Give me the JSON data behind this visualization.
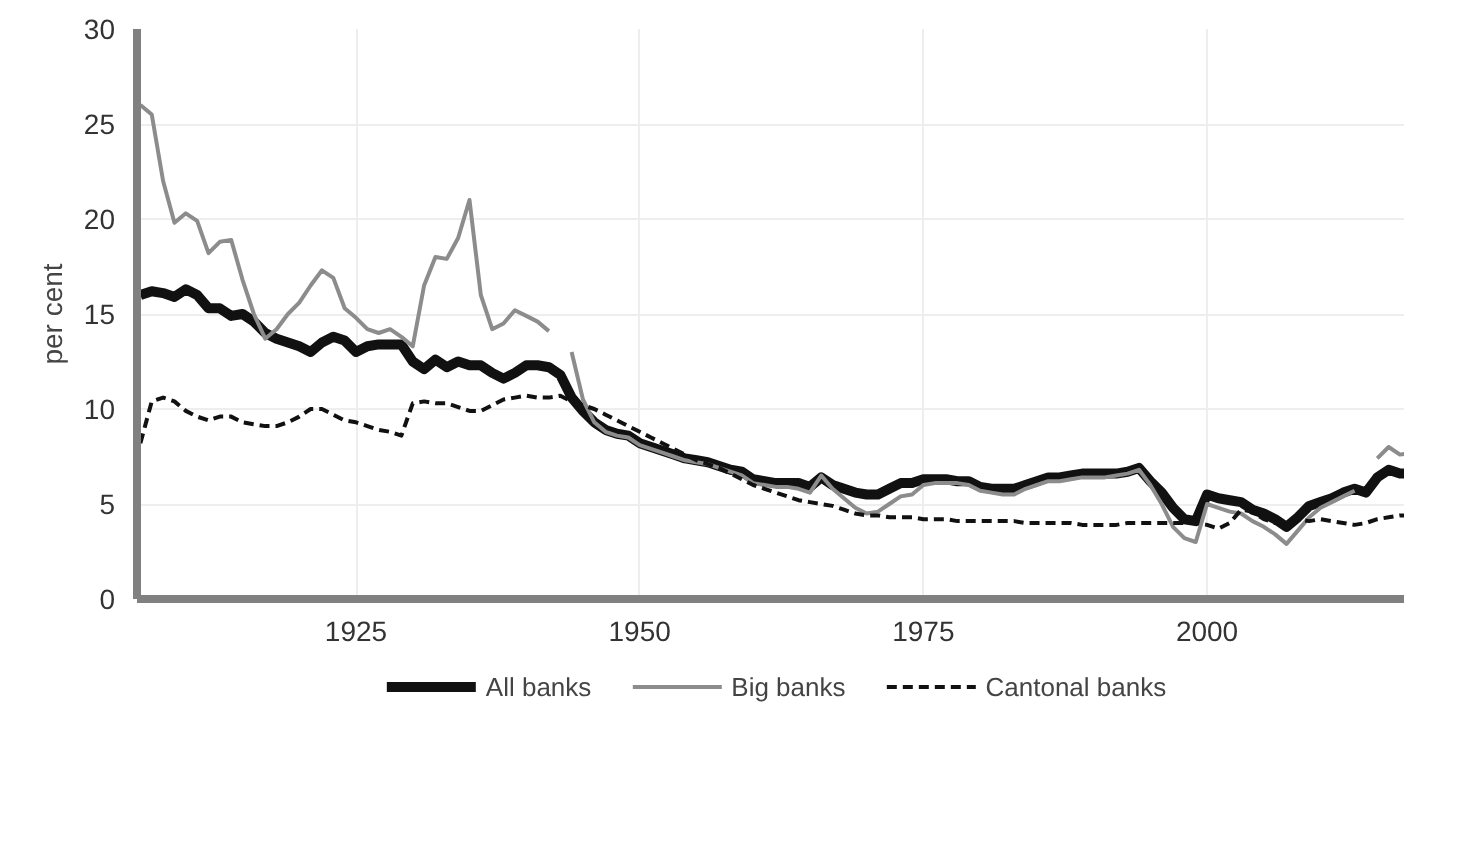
{
  "chart_data": {
    "type": "line",
    "ylabel": "per cent",
    "xlim": [
      1905.7,
      2018.5
    ],
    "xticks": [
      1925,
      1950,
      1975,
      2000
    ],
    "ylim": [
      0,
      30
    ],
    "yticks": [
      0,
      5,
      10,
      15,
      20,
      25,
      30
    ],
    "grid": true,
    "legend": "bottom",
    "marker": "none",
    "x": [
      1906,
      1907,
      1908,
      1909,
      1910,
      1911,
      1912,
      1913,
      1914,
      1915,
      1916,
      1917,
      1918,
      1919,
      1920,
      1921,
      1922,
      1923,
      1924,
      1925,
      1926,
      1927,
      1928,
      1929,
      1930,
      1931,
      1932,
      1933,
      1934,
      1935,
      1936,
      1937,
      1938,
      1939,
      1940,
      1941,
      1942,
      1943,
      1944,
      1945,
      1946,
      1947,
      1948,
      1949,
      1950,
      1951,
      1952,
      1953,
      1954,
      1955,
      1956,
      1957,
      1958,
      1959,
      1960,
      1961,
      1962,
      1963,
      1964,
      1965,
      1966,
      1967,
      1968,
      1969,
      1970,
      1971,
      1972,
      1973,
      1974,
      1975,
      1976,
      1977,
      1978,
      1979,
      1980,
      1981,
      1982,
      1983,
      1984,
      1985,
      1986,
      1987,
      1988,
      1989,
      1990,
      1991,
      1992,
      1993,
      1994,
      1995,
      1996,
      1997,
      1998,
      1999,
      2000,
      2001,
      2002,
      2003,
      2004,
      2005,
      2006,
      2007,
      2008,
      2009,
      2010,
      2011,
      2012,
      2013,
      2014,
      2015,
      2016,
      2017,
      2018
    ],
    "series": [
      {
        "name": "All banks",
        "color": "#111111",
        "line_style": "solid",
        "values": [
          16.0,
          16.2,
          16.1,
          15.9,
          16.3,
          16.0,
          15.3,
          15.3,
          14.9,
          15.0,
          14.6,
          14.0,
          13.7,
          13.5,
          13.3,
          13.0,
          13.5,
          13.8,
          13.6,
          13.0,
          13.3,
          13.4,
          13.4,
          13.4,
          12.5,
          12.1,
          12.6,
          12.2,
          12.5,
          12.3,
          12.3,
          11.9,
          11.6,
          11.9,
          12.3,
          12.3,
          12.2,
          11.8,
          10.6,
          9.9,
          9.3,
          8.9,
          8.7,
          8.6,
          8.2,
          8.0,
          7.8,
          7.6,
          7.4,
          7.3,
          7.2,
          7.0,
          6.8,
          6.7,
          6.3,
          6.2,
          6.1,
          6.1,
          6.1,
          5.9,
          6.4,
          6.0,
          5.8,
          5.6,
          5.5,
          5.5,
          5.8,
          6.1,
          6.1,
          6.3,
          6.3,
          6.3,
          6.2,
          6.2,
          5.9,
          5.8,
          5.8,
          5.8,
          6.0,
          6.2,
          6.4,
          6.4,
          6.5,
          6.6,
          6.6,
          6.6,
          6.6,
          6.7,
          6.9,
          6.2,
          5.6,
          4.8,
          4.2,
          4.1,
          5.5,
          5.3,
          5.2,
          5.1,
          4.7,
          4.5,
          4.2,
          3.8,
          4.3,
          4.9,
          5.1,
          5.3,
          5.6,
          5.8,
          5.6,
          6.4,
          6.8,
          6.6,
          6.6
        ]
      },
      {
        "name": "Big banks",
        "color": "#8c8c8c",
        "line_style": "solid",
        "values": [
          26.0,
          25.5,
          22.0,
          19.8,
          20.3,
          19.9,
          18.2,
          18.8,
          18.9,
          16.8,
          15.0,
          13.7,
          14.2,
          15.0,
          15.6,
          16.5,
          17.3,
          16.9,
          15.3,
          14.8,
          14.2,
          14.0,
          14.2,
          13.8,
          13.3,
          16.5,
          18.0,
          17.9,
          19.0,
          21.0,
          16.0,
          14.2,
          14.5,
          15.2,
          14.9,
          14.6,
          14.1,
          null,
          13.0,
          10.5,
          9.3,
          8.8,
          8.6,
          8.5,
          8.1,
          7.9,
          7.7,
          7.5,
          7.3,
          7.2,
          7.1,
          6.9,
          6.7,
          6.5,
          6.1,
          6.0,
          5.9,
          5.9,
          5.8,
          5.6,
          6.5,
          5.8,
          5.3,
          4.8,
          4.5,
          4.6,
          5.0,
          5.4,
          5.5,
          6.0,
          6.1,
          6.1,
          6.1,
          6.0,
          5.7,
          5.6,
          5.5,
          5.5,
          5.8,
          6.0,
          6.2,
          6.2,
          6.3,
          6.4,
          6.4,
          6.4,
          6.5,
          6.6,
          6.8,
          6.0,
          5.0,
          3.8,
          3.2,
          3.0,
          5.0,
          4.8,
          4.6,
          4.5,
          4.1,
          3.8,
          3.4,
          2.9,
          3.6,
          4.3,
          4.8,
          5.1,
          5.4,
          5.7,
          null,
          7.4,
          8.0,
          7.6,
          7.7
        ]
      },
      {
        "name": "Cantonal banks",
        "color": "#111111",
        "line_style": "dashed",
        "values": [
          8.2,
          10.4,
          10.6,
          10.4,
          9.9,
          9.6,
          9.4,
          9.6,
          9.6,
          9.3,
          9.2,
          9.1,
          9.1,
          9.3,
          9.6,
          10.0,
          10.0,
          9.7,
          9.4,
          9.3,
          9.1,
          8.9,
          8.8,
          8.6,
          10.3,
          10.4,
          10.3,
          10.3,
          10.1,
          9.9,
          9.9,
          10.2,
          10.5,
          10.6,
          10.7,
          10.6,
          10.6,
          10.7,
          10.4,
          10.2,
          10.0,
          9.7,
          9.4,
          9.1,
          8.8,
          8.5,
          8.2,
          7.9,
          7.6,
          7.3,
          7.1,
          6.9,
          6.6,
          6.3,
          6.0,
          5.8,
          5.6,
          5.4,
          5.2,
          5.1,
          5.0,
          4.9,
          4.7,
          4.5,
          4.4,
          4.4,
          4.3,
          4.3,
          4.3,
          4.2,
          4.2,
          4.2,
          4.1,
          4.1,
          4.1,
          4.1,
          4.1,
          4.1,
          4.0,
          4.0,
          4.0,
          4.0,
          4.0,
          3.9,
          3.9,
          3.9,
          3.9,
          4.0,
          4.0,
          4.0,
          4.0,
          4.0,
          4.0,
          4.0,
          3.9,
          3.7,
          4.0,
          4.7,
          4.6,
          4.2,
          4.0,
          4.0,
          4.2,
          4.1,
          4.2,
          4.1,
          4.0,
          3.9,
          4.0,
          4.2,
          4.3,
          4.4,
          4.4
        ]
      }
    ]
  }
}
